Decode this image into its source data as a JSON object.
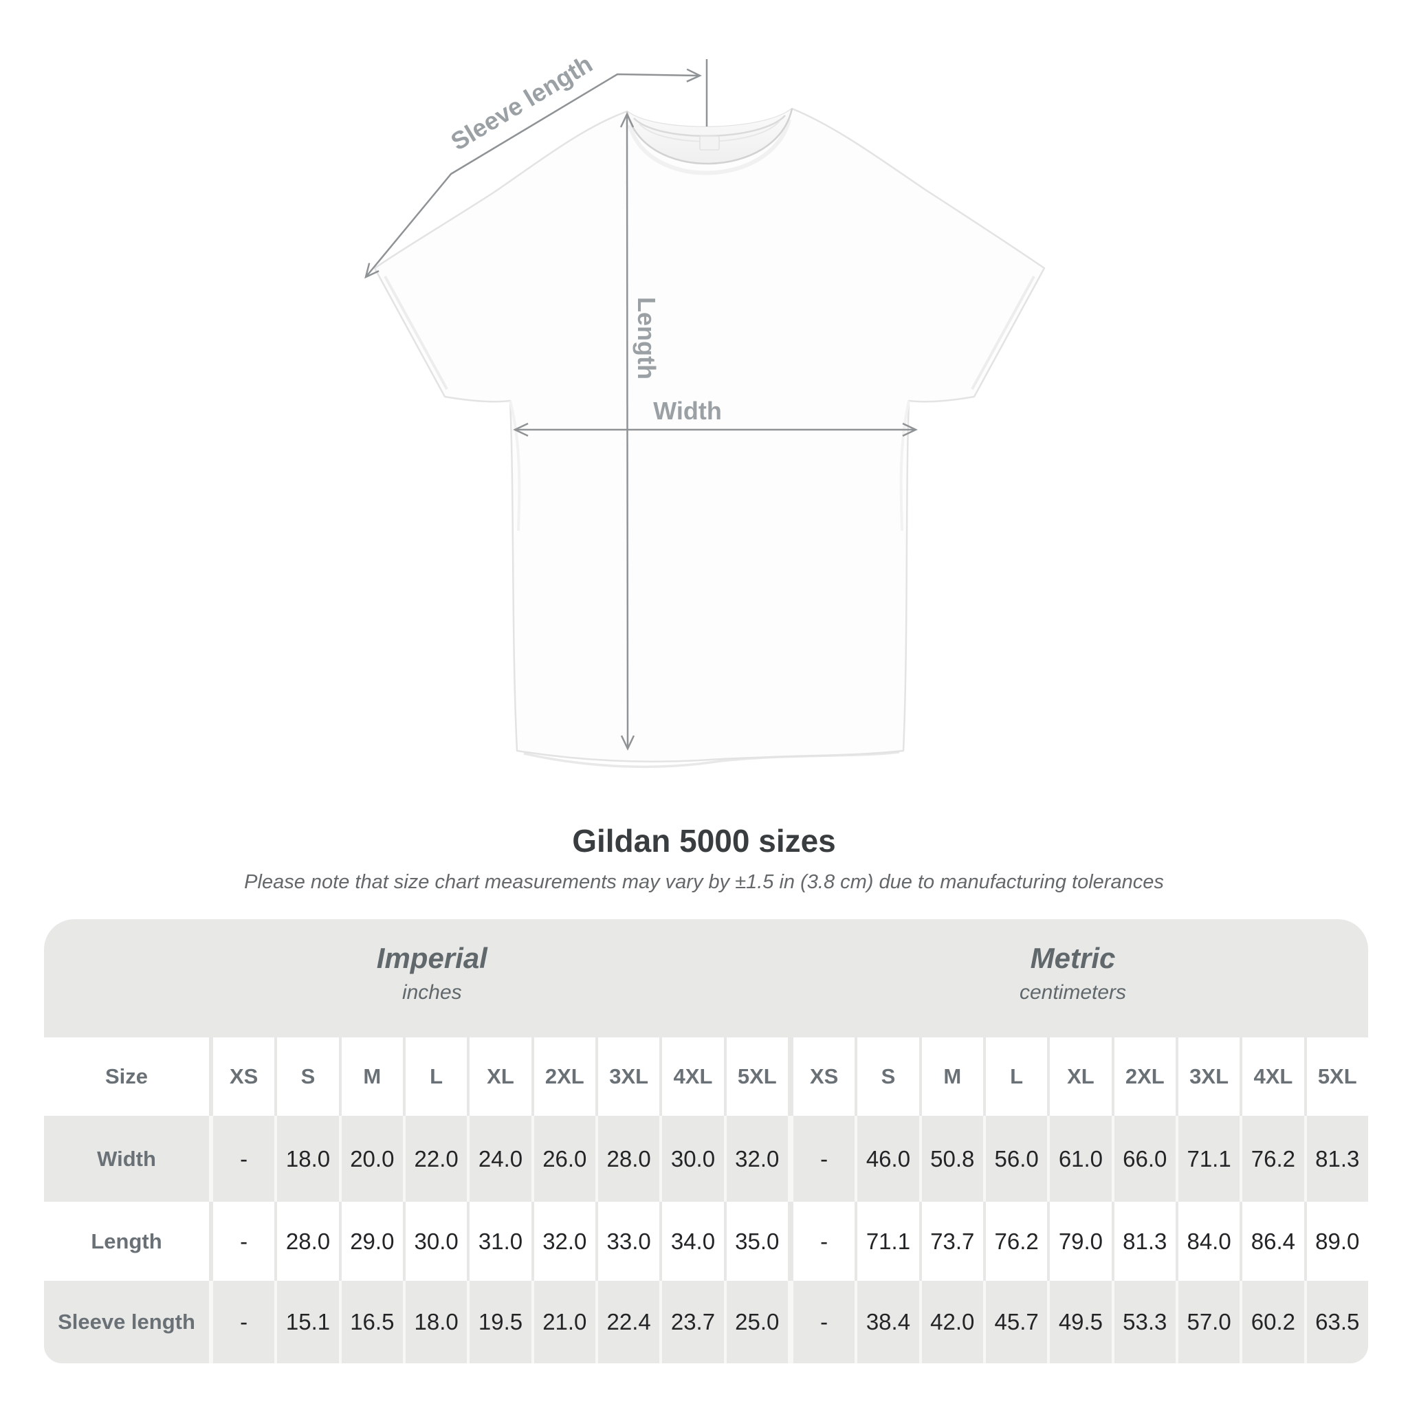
{
  "heading": {
    "title": "Gildan 5000 sizes",
    "subtitle": "Please note that size chart measurements may vary by ±1.5 in (3.8 cm) due to manufacturing tolerances"
  },
  "diagram": {
    "labels": {
      "sleeve": "Sleeve length",
      "length": "Length",
      "width": "Width"
    },
    "line_color": "#8f9396",
    "label_color": "#9aa0a3",
    "shirt_fill": "#fdfdfd",
    "shirt_outline": "#e3e3e3"
  },
  "size_chart": {
    "sections": [
      {
        "name": "Imperial",
        "unit": "inches"
      },
      {
        "name": "Metric",
        "unit": "centimeters"
      }
    ],
    "size_header_label": "Size",
    "sizes": [
      "XS",
      "S",
      "M",
      "L",
      "XL",
      "2XL",
      "3XL",
      "4XL",
      "5XL"
    ],
    "rows": [
      {
        "label": "Width",
        "imperial": [
          "-",
          "18.0",
          "20.0",
          "22.0",
          "24.0",
          "26.0",
          "28.0",
          "30.0",
          "32.0"
        ],
        "metric": [
          "-",
          "46.0",
          "50.8",
          "56.0",
          "61.0",
          "66.0",
          "71.1",
          "76.2",
          "81.3"
        ]
      },
      {
        "label": "Length",
        "imperial": [
          "-",
          "28.0",
          "29.0",
          "30.0",
          "31.0",
          "32.0",
          "33.0",
          "34.0",
          "35.0"
        ],
        "metric": [
          "-",
          "71.1",
          "73.7",
          "76.2",
          "79.0",
          "81.3",
          "84.0",
          "86.4",
          "89.0"
        ]
      },
      {
        "label": "Sleeve length",
        "imperial": [
          "-",
          "15.1",
          "16.5",
          "18.0",
          "19.5",
          "21.0",
          "22.4",
          "23.7",
          "25.0"
        ],
        "metric": [
          "-",
          "38.4",
          "42.0",
          "45.7",
          "49.5",
          "53.3",
          "57.0",
          "60.2",
          "63.5"
        ]
      }
    ],
    "colors": {
      "band_gray": "#e8e8e7",
      "row_white": "#ffffff",
      "separator_on_white": "#e7e7e6",
      "separator_on_gray": "#f7f7f6",
      "header_text": "#6a7176",
      "value_text": "#222426"
    }
  }
}
